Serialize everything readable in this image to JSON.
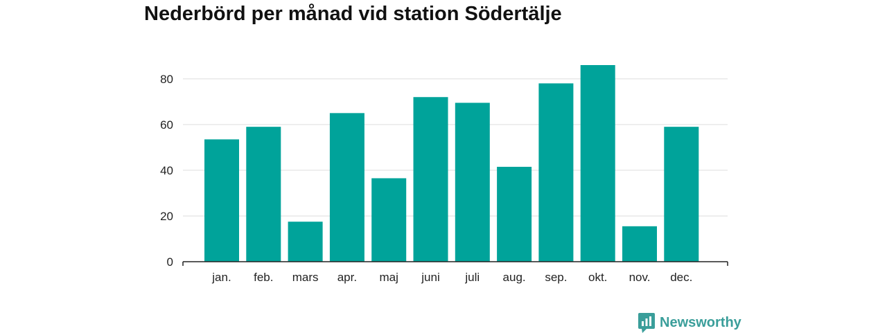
{
  "chart_data": {
    "type": "bar",
    "title": "Nederbörd per månad vid station Södertälje",
    "categories": [
      "jan.",
      "feb.",
      "mars",
      "apr.",
      "maj",
      "juni",
      "juli",
      "aug.",
      "sep.",
      "okt.",
      "nov.",
      "dec."
    ],
    "values": [
      53.5,
      59,
      17.5,
      65,
      36.5,
      72,
      69.5,
      41.5,
      78,
      86,
      15.5,
      59
    ],
    "ylim": [
      0,
      86
    ],
    "yticks": [
      0,
      20,
      40,
      60,
      80
    ],
    "xlabel": "",
    "ylabel": "",
    "grid": true,
    "bar_color": "#00a39a"
  },
  "brand": {
    "name": "Newsworthy",
    "icon": "bar-chart-icon",
    "color": "#3a9e9a"
  }
}
